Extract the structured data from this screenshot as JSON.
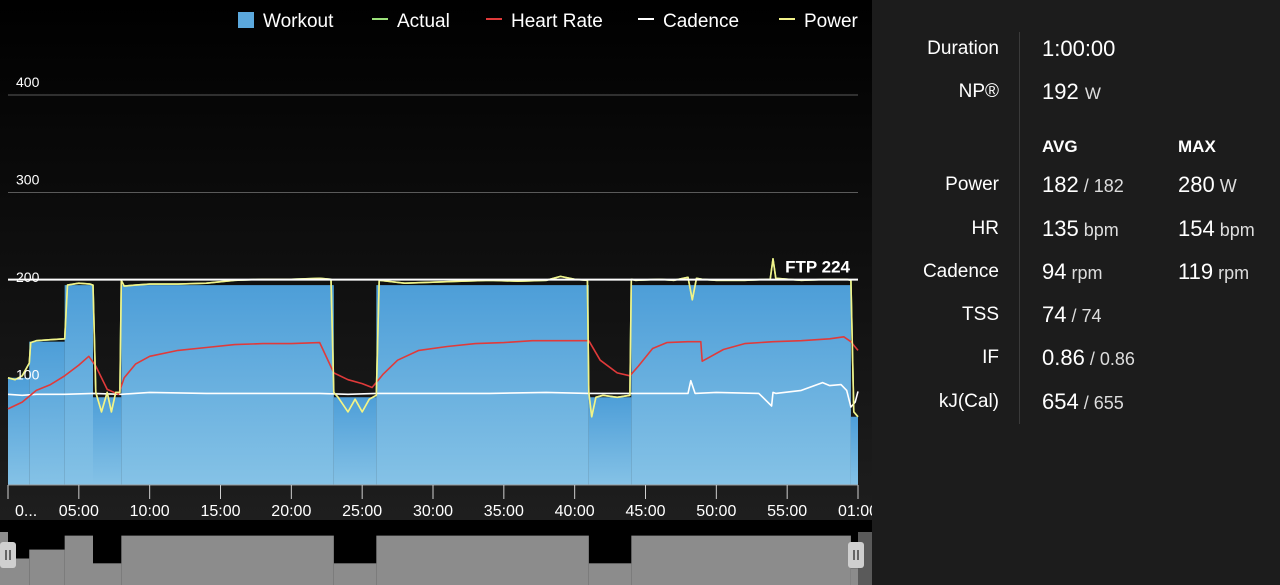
{
  "legend": [
    {
      "label": "Workout",
      "color": "#5ba8dd",
      "marker": "square"
    },
    {
      "label": "Actual",
      "color": "#9be07a",
      "marker": "line"
    },
    {
      "label": "Heart Rate",
      "color": "#e03a3a",
      "marker": "line"
    },
    {
      "label": "Cadence",
      "color": "#ffffff",
      "marker": "line"
    },
    {
      "label": "Power",
      "color": "#f2f28a",
      "marker": "line"
    }
  ],
  "chart_data": {
    "type": "area",
    "xlabel": "",
    "ylabel": "",
    "xlim": [
      0,
      60
    ],
    "ylim": [
      0,
      440
    ],
    "x_ticks": [
      {
        "value": 0,
        "label": "0..."
      },
      {
        "value": 5,
        "label": "05:00"
      },
      {
        "value": 10,
        "label": "10:00"
      },
      {
        "value": 15,
        "label": "15:00"
      },
      {
        "value": 20,
        "label": "20:00"
      },
      {
        "value": 25,
        "label": "25:00"
      },
      {
        "value": 30,
        "label": "30:00"
      },
      {
        "value": 35,
        "label": "35:00"
      },
      {
        "value": 40,
        "label": "40:00"
      },
      {
        "value": 45,
        "label": "45:00"
      },
      {
        "value": 50,
        "label": "50:00"
      },
      {
        "value": 55,
        "label": "55:00"
      },
      {
        "value": 60,
        "label": "01:00"
      }
    ],
    "y_ticks": [
      {
        "value": 100,
        "label": "100",
        "gridline": false
      },
      {
        "value": 200,
        "label": "200",
        "gridline": false
      },
      {
        "value": 300,
        "label": "300",
        "gridline": true
      },
      {
        "value": 400,
        "label": "400",
        "gridline": true
      }
    ],
    "ftp": {
      "value": 224,
      "label": "FTP 224"
    },
    "workout": {
      "name": "Workout",
      "color": "#5ba8dd",
      "steps": [
        {
          "start": 0,
          "end": 1.5,
          "power": 110
        },
        {
          "start": 1.5,
          "end": 4,
          "power": 147
        },
        {
          "start": 4,
          "end": 6,
          "power": 205
        },
        {
          "start": 6,
          "end": 8,
          "power": 90
        },
        {
          "start": 8,
          "end": 23,
          "power": 205
        },
        {
          "start": 23,
          "end": 26,
          "power": 90
        },
        {
          "start": 26,
          "end": 41,
          "power": 205
        },
        {
          "start": 41,
          "end": 44,
          "power": 90
        },
        {
          "start": 44,
          "end": 59.5,
          "power": 205
        },
        {
          "start": 59.5,
          "end": 60,
          "power": 70
        }
      ]
    },
    "series": [
      {
        "name": "Power",
        "color": "#f2f28a",
        "x": [
          0,
          0.5,
          1,
          1.5,
          1.6,
          2,
          3,
          4,
          4.2,
          5,
          5.8,
          6,
          6.2,
          6.6,
          7,
          7.3,
          7.6,
          7.9,
          8,
          8.2,
          9,
          10,
          12,
          14,
          16,
          18,
          20,
          22,
          22.8,
          23,
          23.3,
          24,
          24.5,
          25,
          25.5,
          26,
          26.2,
          28,
          30,
          32,
          34,
          36,
          38,
          39,
          40,
          40.9,
          41,
          41.2,
          41.5,
          42,
          43,
          43.9,
          44,
          44.3,
          46,
          47,
          48,
          48.3,
          48.6,
          49,
          50,
          52,
          53.8,
          54,
          54.2,
          56,
          58,
          59.2,
          59.5,
          59.7,
          60
        ],
        "values": [
          110,
          108,
          112,
          125,
          146,
          148,
          149,
          150,
          205,
          207,
          206,
          205,
          95,
          75,
          95,
          75,
          95,
          95,
          210,
          204,
          205,
          206,
          206,
          207,
          210,
          211,
          211,
          212,
          211,
          95,
          90,
          75,
          88,
          75,
          88,
          92,
          210,
          207,
          208,
          209,
          210,
          209,
          210,
          214,
          211,
          210,
          95,
          70,
          90,
          92,
          90,
          92,
          211,
          210,
          211,
          210,
          213,
          190,
          212,
          211,
          210,
          210,
          211,
          232,
          212,
          210,
          211,
          211,
          210,
          75,
          70
        ]
      },
      {
        "name": "Actual",
        "color": "#9be07a",
        "x": [
          0,
          0.5,
          1,
          1.5,
          1.6,
          2,
          3,
          4,
          4.2,
          5,
          5.8,
          6,
          6.2,
          6.6,
          7,
          7.3,
          7.6,
          7.9,
          8,
          8.2,
          9,
          10,
          12,
          14,
          16,
          18,
          20,
          22,
          22.8,
          23,
          23.3,
          24,
          24.5,
          25,
          25.5,
          26,
          26.2,
          28,
          30,
          32,
          34,
          36,
          38,
          39,
          40,
          40.9,
          41,
          41.2,
          41.5,
          42,
          43,
          43.9,
          44,
          44.3,
          46,
          47,
          48,
          48.3,
          48.6,
          49,
          50,
          52,
          53.8,
          54,
          54.2,
          56,
          58,
          59.2,
          59.5,
          59.7,
          60
        ],
        "values": [
          110,
          108,
          112,
          125,
          146,
          148,
          149,
          150,
          205,
          207,
          206,
          205,
          95,
          75,
          95,
          75,
          95,
          95,
          210,
          204,
          205,
          206,
          206,
          207,
          210,
          211,
          211,
          212,
          211,
          95,
          90,
          75,
          88,
          75,
          88,
          92,
          210,
          207,
          208,
          209,
          210,
          209,
          210,
          214,
          211,
          210,
          95,
          70,
          90,
          92,
          90,
          92,
          211,
          210,
          211,
          210,
          213,
          190,
          212,
          211,
          210,
          210,
          211,
          232,
          212,
          210,
          211,
          211,
          210,
          75,
          70
        ]
      },
      {
        "name": "Heart Rate",
        "color": "#e03a3a",
        "x": [
          0,
          1,
          2,
          3,
          4,
          5,
          5.7,
          6.2,
          7,
          7.8,
          8.2,
          9,
          10,
          12,
          14,
          16,
          18,
          20,
          22,
          23,
          24,
          25,
          25.7,
          26.5,
          27.5,
          29,
          31,
          33,
          35,
          37,
          39,
          41,
          41.8,
          43,
          43.9,
          44.5,
          45.5,
          46.5,
          48,
          48.9,
          49,
          49.5,
          50.5,
          52,
          54,
          56,
          58,
          59,
          59.5,
          60
        ],
        "values": [
          78,
          85,
          97,
          103,
          112,
          123,
          132,
          122,
          98,
          93,
          110,
          124,
          132,
          138,
          141,
          144,
          145,
          145,
          146,
          115,
          108,
          104,
          100,
          114,
          128,
          138,
          142,
          145,
          146,
          148,
          148,
          148,
          128,
          115,
          112,
          122,
          140,
          146,
          147,
          147,
          127,
          131,
          139,
          145,
          147,
          148,
          150,
          152,
          147,
          138
        ]
      },
      {
        "name": "Cadence",
        "color": "#ffffff",
        "x": [
          0,
          1,
          2,
          4,
          6,
          8,
          10,
          14,
          18,
          22,
          24,
          26,
          30,
          34,
          38,
          41,
          44,
          46,
          48,
          48.2,
          48.5,
          50,
          53,
          53.9,
          54,
          54.2,
          56,
          57.5,
          58,
          58.8,
          59.2,
          59.5,
          59.8,
          60
        ],
        "values": [
          93,
          92,
          93,
          93,
          94,
          93,
          95,
          94,
          94,
          94,
          93,
          94,
          94,
          94,
          95,
          94,
          94,
          94,
          94,
          107,
          94,
          95,
          94,
          81,
          95,
          94,
          97,
          105,
          102,
          103,
          97,
          80,
          85,
          96
        ]
      }
    ],
    "grid": false
  },
  "minimap": {
    "color": "#8c8c8c",
    "handle_color": "#cfcfcf"
  },
  "stats": {
    "duration": {
      "label": "Duration",
      "value": "1:00:00"
    },
    "np": {
      "label": "NP®",
      "value": "192",
      "unit": "W"
    },
    "columns": {
      "avg": "AVG",
      "max": "MAX"
    },
    "rows": [
      {
        "label": "Power",
        "avg_main": "182",
        "avg_sub": " / 182",
        "max_main": "280",
        "max_unit": " W"
      },
      {
        "label": "HR",
        "avg_main": "135",
        "avg_sub": " bpm",
        "max_main": "154",
        "max_unit": " bpm"
      },
      {
        "label": "Cadence",
        "avg_main": "94",
        "avg_sub": " rpm",
        "max_main": "119",
        "max_unit": " rpm"
      },
      {
        "label": "TSS",
        "avg_main": "74",
        "avg_sub": " / 74",
        "max_main": "",
        "max_unit": ""
      },
      {
        "label": "IF",
        "avg_main": "0.86",
        "avg_sub": " / 0.86",
        "max_main": "",
        "max_unit": ""
      },
      {
        "label": "kJ(Cal)",
        "avg_main": "654",
        "avg_sub": " / 655",
        "max_main": "",
        "max_unit": ""
      }
    ]
  }
}
